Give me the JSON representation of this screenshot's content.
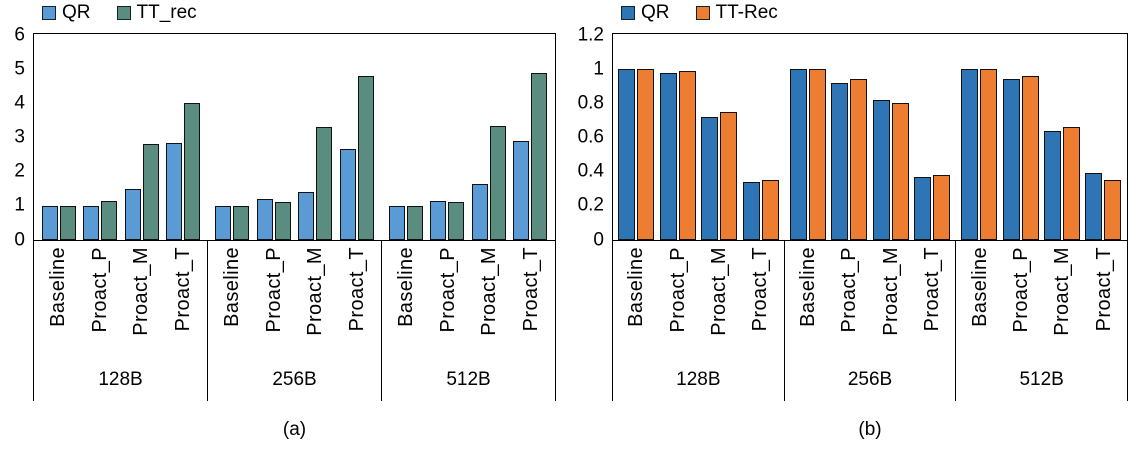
{
  "figure": {
    "captions": {
      "a": "(a)",
      "b": "(b)"
    }
  },
  "chart_data": [
    {
      "id": "a",
      "type": "bar",
      "caption": "(a)",
      "legend_position": "top-left",
      "grid": false,
      "ylim": [
        0,
        6
      ],
      "yticks": [
        "0",
        "1",
        "2",
        "3",
        "4",
        "5",
        "6"
      ],
      "groups": [
        "128B",
        "256B",
        "512B"
      ],
      "categories": [
        "Baseline",
        "Proact_P",
        "Proact_M",
        "Proact_T"
      ],
      "series": [
        {
          "name": "QR",
          "color": "#5B9BD5",
          "values": [
            [
              1.0,
              1.0,
              1.5,
              2.85
            ],
            [
              1.0,
              1.2,
              1.4,
              2.65
            ],
            [
              1.0,
              1.15,
              1.65,
              2.9
            ]
          ]
        },
        {
          "name": "TT_rec",
          "color": "#5A8C80",
          "values": [
            [
              1.0,
              1.15,
              2.8,
              4.0
            ],
            [
              1.0,
              1.1,
              3.3,
              4.8
            ],
            [
              1.0,
              1.1,
              3.35,
              4.9
            ]
          ]
        }
      ]
    },
    {
      "id": "b",
      "type": "bar",
      "caption": "(b)",
      "legend_position": "top-left",
      "grid": false,
      "ylim": [
        0,
        1.2
      ],
      "yticks": [
        "0",
        "0.2",
        "0.4",
        "0.6",
        "0.8",
        "1",
        "1.2"
      ],
      "groups": [
        "128B",
        "256B",
        "512B"
      ],
      "categories": [
        "Baseline",
        "Proact_P",
        "Proact_M",
        "Proact_T"
      ],
      "series": [
        {
          "name": "QR",
          "color": "#2E75B6",
          "values": [
            [
              1.0,
              0.98,
              0.72,
              0.34
            ],
            [
              1.0,
              0.92,
              0.82,
              0.37
            ],
            [
              1.0,
              0.94,
              0.64,
              0.39
            ]
          ]
        },
        {
          "name": "TT-Rec",
          "color": "#ED7D31",
          "values": [
            [
              1.0,
              0.99,
              0.75,
              0.35
            ],
            [
              1.0,
              0.94,
              0.8,
              0.38
            ],
            [
              1.0,
              0.96,
              0.66,
              0.35
            ]
          ]
        }
      ]
    }
  ]
}
